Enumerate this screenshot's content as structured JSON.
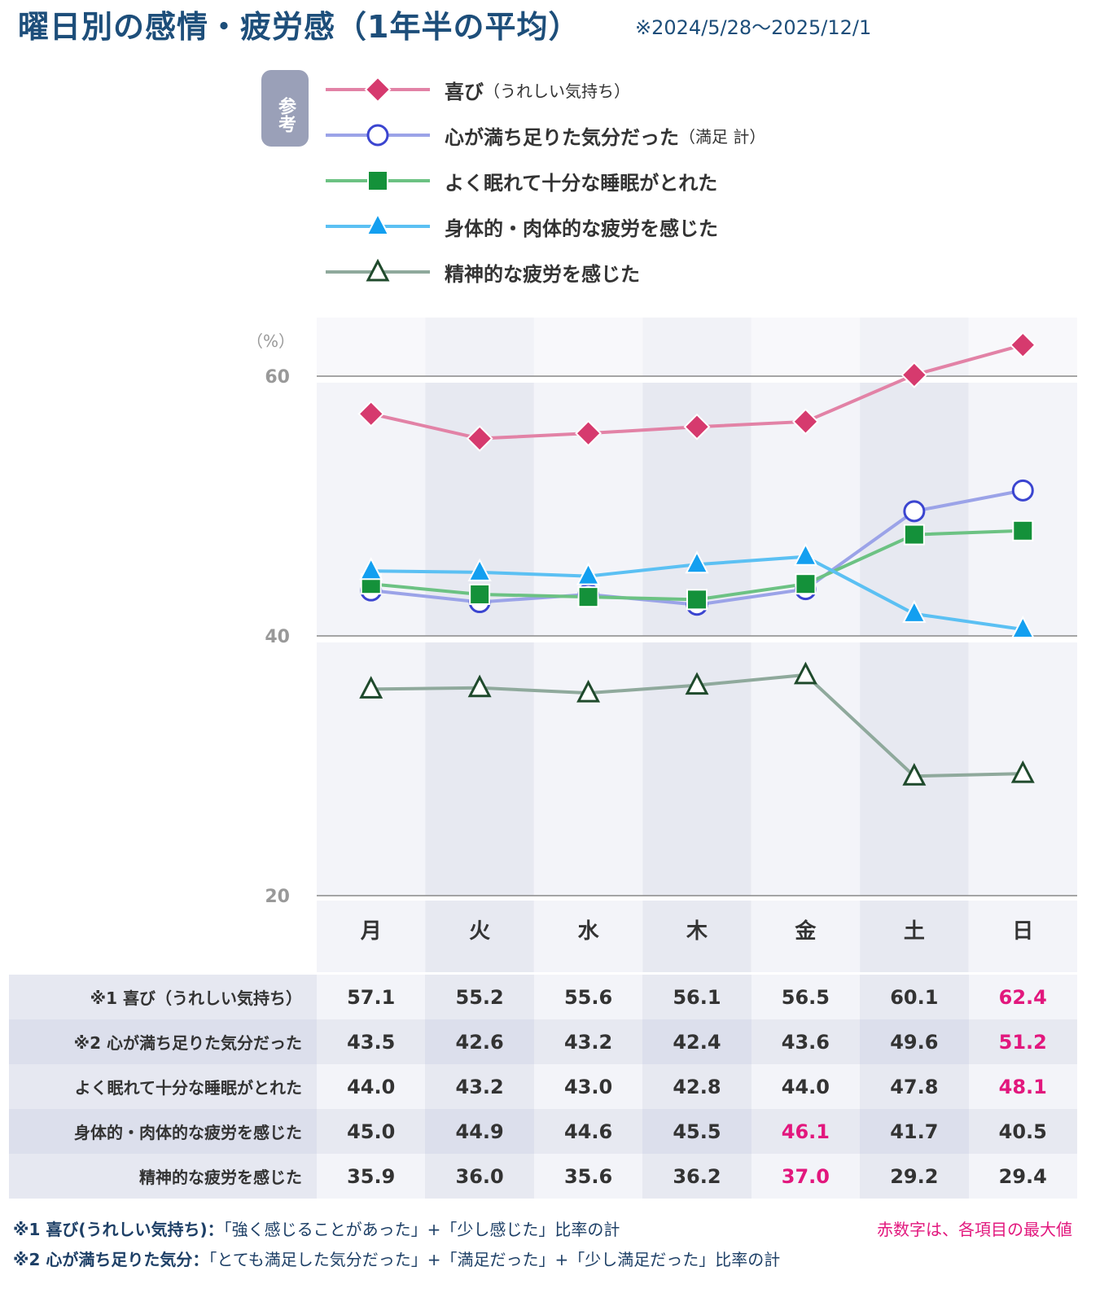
{
  "title": "曜日別の感情・疲労感（1年半の平均）",
  "period": "※2024/5/28〜2025/12/1",
  "reference_badge": "参考",
  "legend": [
    {
      "label": "喜び",
      "sub": "（うれしい気持ち）"
    },
    {
      "label": "心が満ち足りた気分だった",
      "sub": "（満足 計）"
    },
    {
      "label": "よく眠れて十分な睡眠がとれた",
      "sub": ""
    },
    {
      "label": "身体的・肉体的な疲労を感じた",
      "sub": ""
    },
    {
      "label": "精神的な疲労を感じた",
      "sub": ""
    }
  ],
  "chart_data": {
    "type": "line",
    "ylabel": "（%）",
    "ylim": [
      20,
      64
    ],
    "yticks": [
      "60",
      "40",
      "20"
    ],
    "categories": [
      "月",
      "火",
      "水",
      "木",
      "金",
      "土",
      "日"
    ],
    "series": [
      {
        "name": "喜び",
        "values": [
          57.1,
          55.2,
          55.6,
          56.1,
          56.5,
          60.1,
          62.4
        ],
        "color": "#d63a6e",
        "line": "#e282a6",
        "marker": "diamond"
      },
      {
        "name": "心が満ち足りた気分だった",
        "values": [
          43.5,
          42.6,
          43.2,
          42.4,
          43.6,
          49.6,
          51.2
        ],
        "color": "#3b45d0",
        "line": "#9ba3e8",
        "marker": "circle"
      },
      {
        "name": "よく眠れて十分な睡眠がとれた",
        "values": [
          44.0,
          43.2,
          43.0,
          42.8,
          44.0,
          47.8,
          48.1
        ],
        "color": "#14913a",
        "line": "#6cc283",
        "marker": "square"
      },
      {
        "name": "身体的・肉体的な疲労を感じた",
        "values": [
          45.0,
          44.9,
          44.6,
          45.5,
          46.1,
          41.7,
          40.5
        ],
        "color": "#139ff0",
        "line": "#5bc0f3",
        "marker": "triangle"
      },
      {
        "name": "精神的な疲労を感じた",
        "values": [
          35.9,
          36.0,
          35.6,
          36.2,
          37.0,
          29.2,
          29.4
        ],
        "color": "#1f4a2c",
        "line": "#8fa99c",
        "marker": "triangle-open"
      }
    ]
  },
  "table": {
    "rows": [
      {
        "label": "※1  喜び（うれしい気持ち）",
        "values": [
          "57.1",
          "55.2",
          "55.6",
          "56.1",
          "56.5",
          "60.1",
          "62.4"
        ],
        "max": 6
      },
      {
        "label": "※2 心が満ち足りた気分だった",
        "values": [
          "43.5",
          "42.6",
          "43.2",
          "42.4",
          "43.6",
          "49.6",
          "51.2"
        ],
        "max": 6
      },
      {
        "label": "よく眠れて十分な睡眠がとれた",
        "values": [
          "44.0",
          "43.2",
          "43.0",
          "42.8",
          "44.0",
          "47.8",
          "48.1"
        ],
        "max": 6
      },
      {
        "label": "身体的・肉体的な疲労を感じた",
        "values": [
          "45.0",
          "44.9",
          "44.6",
          "45.5",
          "46.1",
          "41.7",
          "40.5"
        ],
        "max": 4
      },
      {
        "label": "精神的な疲労を感じた",
        "values": [
          "35.9",
          "36.0",
          "35.6",
          "36.2",
          "37.0",
          "29.2",
          "29.4"
        ],
        "max": 4
      }
    ]
  },
  "notes": {
    "note1_head": "※1 喜び(うれしい気持ち)：",
    "note1_body": "「強く感じることがあった」+「少し感じた」比率の計",
    "note2_head": "※2 心が満ち足りた気分：",
    "note2_body": "「とても満足した気分だった」+「満足だった」+「少し満足だった」比率の計",
    "max_note": "赤数字は、各項目の最大値"
  },
  "colors": {
    "title": "#1d4e7a",
    "max_value": "#e2177d"
  }
}
